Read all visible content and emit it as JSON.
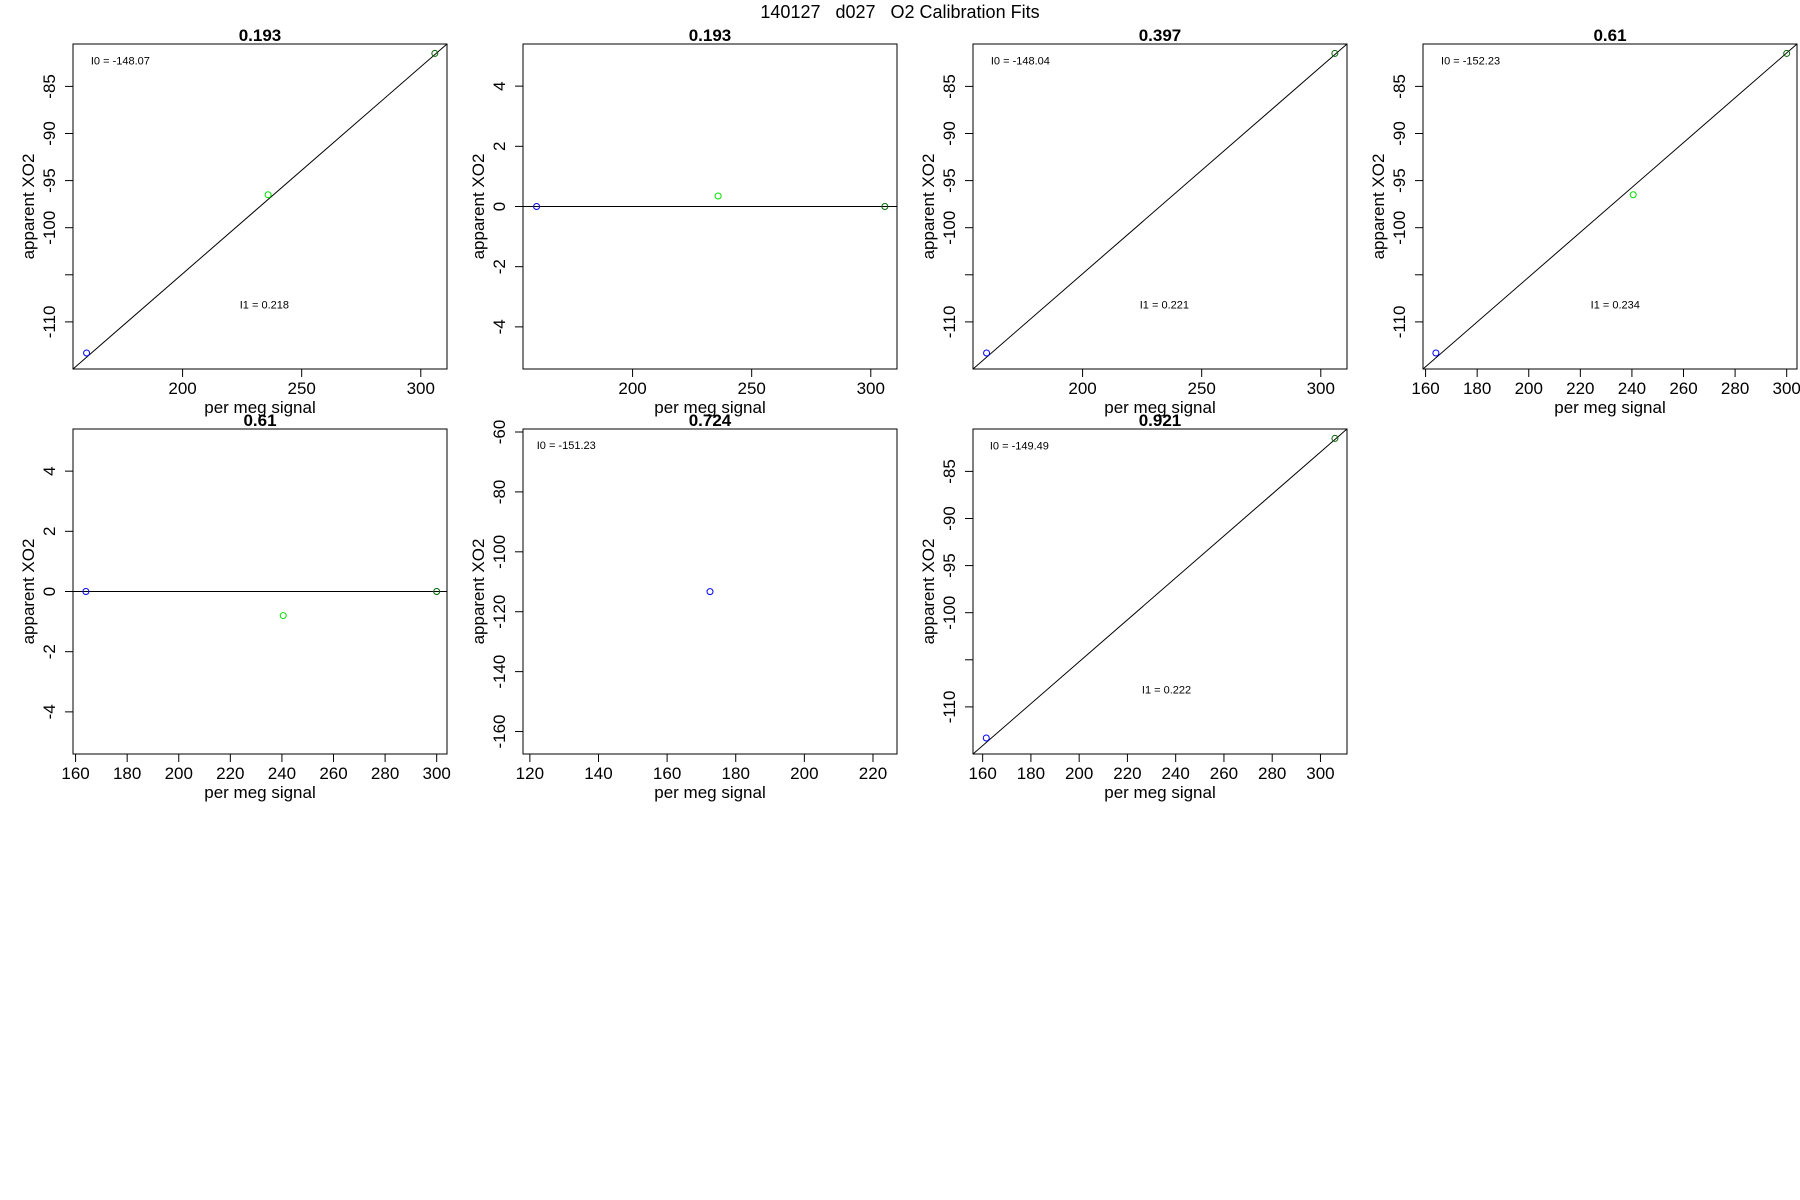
{
  "title": "140127   d027   O2 Calibration Fits",
  "chart_data": [
    {
      "type": "scatter",
      "title": "0.193",
      "xlabel": "per meg signal",
      "ylabel": "apparent XO2",
      "xlim": [
        154,
        311
      ],
      "ylim": [
        -115,
        -80.5
      ],
      "xticks": [
        200,
        250,
        300
      ],
      "yticks": [
        -110,
        -100,
        -95,
        -90,
        -85
      ],
      "ytick_labels": [
        "-110",
        "-100",
        "-95",
        "-90",
        "-85"
      ],
      "yminor": [
        -105
      ],
      "points": [
        {
          "x": 159.7,
          "y": -113.3,
          "color": "#0000ff"
        },
        {
          "x": 235.9,
          "y": -96.5,
          "color": "#00e000"
        },
        {
          "x": 305.9,
          "y": -81.5,
          "color": "#006400"
        }
      ],
      "fit_line": {
        "x": [
          154,
          311
        ],
        "y": [
          -115.0,
          -80.5
        ]
      },
      "annotations": [
        {
          "text": "I0 =  -148.07",
          "x": 161.5,
          "y": -82.7
        },
        {
          "text": "I1 =  0.218",
          "x": 224,
          "y": -108.6
        }
      ]
    },
    {
      "type": "scatter",
      "title": "0.193",
      "xlabel": "per meg signal",
      "ylabel": "apparent XO2",
      "xlim": [
        154,
        311
      ],
      "ylim": [
        -5.4,
        5.4
      ],
      "xticks": [
        200,
        250,
        300
      ],
      "yticks": [
        -4,
        -2,
        0,
        2,
        4
      ],
      "ytick_labels": [
        "-4",
        "-2",
        "0",
        "2",
        "4"
      ],
      "yminor": [],
      "points": [
        {
          "x": 159.7,
          "y": 0,
          "color": "#0000ff"
        },
        {
          "x": 235.9,
          "y": 0.35,
          "color": "#00e000"
        },
        {
          "x": 305.9,
          "y": 0,
          "color": "#006400"
        }
      ],
      "fit_line": {
        "x": [
          154,
          311
        ],
        "y": [
          0,
          0
        ]
      },
      "annotations": []
    },
    {
      "type": "scatter",
      "title": "0.397",
      "xlabel": "per meg signal",
      "ylabel": "apparent XO2",
      "xlim": [
        154,
        311
      ],
      "ylim": [
        -115,
        -80.5
      ],
      "xticks": [
        200,
        250,
        300
      ],
      "yticks": [
        -110,
        -100,
        -95,
        -90,
        -85
      ],
      "ytick_labels": [
        "-110",
        "-100",
        "-95",
        "-90",
        "-85"
      ],
      "yminor": [
        -105
      ],
      "points": [
        {
          "x": 159.7,
          "y": -113.3,
          "color": "#0000ff"
        },
        {
          "x": 305.9,
          "y": -81.5,
          "color": "#006400"
        }
      ],
      "fit_line": {
        "x": [
          154,
          311
        ],
        "y": [
          -115.0,
          -80.5
        ]
      },
      "annotations": [
        {
          "text": "I0 =  -148.04",
          "x": 161.5,
          "y": -82.7
        },
        {
          "text": "I1 =  0.221",
          "x": 224,
          "y": -108.6
        }
      ]
    },
    {
      "type": "scatter",
      "title": "0.61",
      "xlabel": "per meg signal",
      "ylabel": "apparent XO2",
      "xlim": [
        159,
        304
      ],
      "ylim": [
        -115,
        -80.5
      ],
      "xticks": [
        160,
        180,
        200,
        220,
        240,
        260,
        280,
        300
      ],
      "yticks": [
        -110,
        -100,
        -95,
        -90,
        -85
      ],
      "ytick_labels": [
        "-110",
        "-100",
        "-95",
        "-90",
        "-85"
      ],
      "yminor": [
        -105
      ],
      "points": [
        {
          "x": 164.0,
          "y": -113.3,
          "color": "#0000ff"
        },
        {
          "x": 240.5,
          "y": -96.5,
          "color": "#00e000"
        },
        {
          "x": 300.0,
          "y": -81.5,
          "color": "#006400"
        }
      ],
      "fit_line": {
        "x": [
          159,
          304
        ],
        "y": [
          -115.0,
          -80.5
        ]
      },
      "annotations": [
        {
          "text": "I0 =  -152.23",
          "x": 166,
          "y": -82.7
        },
        {
          "text": "I1 =  0.234",
          "x": 224,
          "y": -108.6
        }
      ]
    },
    {
      "type": "scatter",
      "title": "0.61",
      "xlabel": "per meg signal",
      "ylabel": "apparent XO2",
      "xlim": [
        159,
        304
      ],
      "ylim": [
        -5.4,
        5.4
      ],
      "xticks": [
        160,
        180,
        200,
        220,
        240,
        260,
        280,
        300
      ],
      "yticks": [
        -4,
        -2,
        0,
        2,
        4
      ],
      "ytick_labels": [
        "-4",
        "-2",
        "0",
        "2",
        "4"
      ],
      "yminor": [],
      "points": [
        {
          "x": 164.0,
          "y": 0,
          "color": "#0000ff"
        },
        {
          "x": 240.5,
          "y": -0.8,
          "color": "#00e000"
        },
        {
          "x": 300.0,
          "y": 0,
          "color": "#006400"
        }
      ],
      "fit_line": {
        "x": [
          159,
          304
        ],
        "y": [
          0,
          0
        ]
      },
      "annotations": []
    },
    {
      "type": "scatter",
      "title": "0.724",
      "xlabel": "per meg signal",
      "ylabel": "apparent XO2",
      "xlim": [
        118,
        227
      ],
      "ylim": [
        -167.5,
        -59
      ],
      "xticks": [
        120,
        140,
        160,
        180,
        200,
        220
      ],
      "yticks": [
        -160,
        -140,
        -120,
        -100,
        -80,
        -60
      ],
      "ytick_labels": [
        "-160",
        "-140",
        "-120",
        "-100",
        "-80",
        "-60"
      ],
      "yminor": [],
      "points": [
        {
          "x": 172.5,
          "y": -113.3,
          "color": "#0000ff"
        }
      ],
      "fit_line": null,
      "annotations": [
        {
          "text": "I0 =  -151.23",
          "x": 122,
          "y": -65.6
        }
      ]
    },
    {
      "type": "scatter",
      "title": "0.921",
      "xlabel": "per meg signal",
      "ylabel": "apparent XO2",
      "xlim": [
        156,
        311
      ],
      "ylim": [
        -115,
        -80.5
      ],
      "xticks": [
        160,
        180,
        200,
        220,
        240,
        260,
        280,
        300
      ],
      "yticks": [
        -110,
        -100,
        -95,
        -90,
        -85
      ],
      "ytick_labels": [
        "-110",
        "-100",
        "-95",
        "-90",
        "-85"
      ],
      "yminor": [
        -105
      ],
      "points": [
        {
          "x": 161.5,
          "y": -113.3,
          "color": "#0000ff"
        },
        {
          "x": 306.0,
          "y": -81.5,
          "color": "#006400"
        }
      ],
      "fit_line": {
        "x": [
          156,
          311
        ],
        "y": [
          -115.0,
          -80.5
        ]
      },
      "annotations": [
        {
          "text": "I0 =  -149.49",
          "x": 163,
          "y": -82.7
        },
        {
          "text": "I1 =  0.222",
          "x": 226,
          "y": -108.6
        }
      ]
    }
  ]
}
